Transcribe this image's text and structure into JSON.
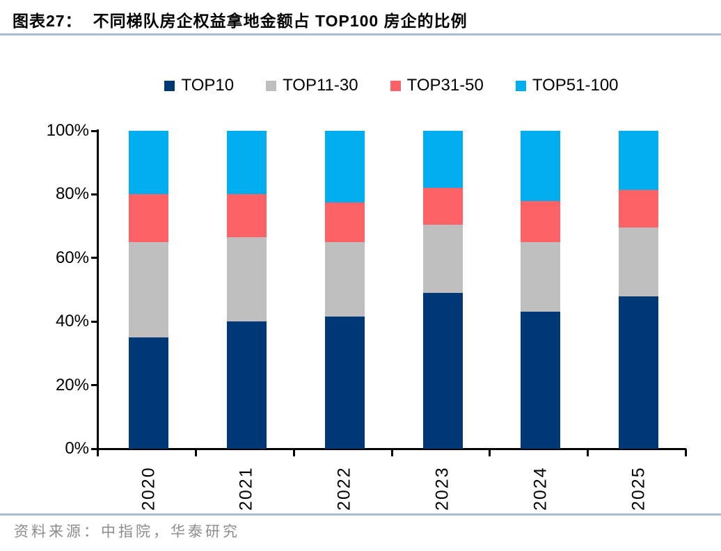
{
  "header": {
    "title_prefix": "图表27：",
    "title": "不同梯队房企权益拿地金额占 TOP100 房企的比例"
  },
  "colors": {
    "navy": "#003876",
    "gray": "#BFBFBF",
    "salmon": "#FD6366",
    "sky": "#00ADEE",
    "rule": "#A8BED6",
    "axis": "#000000",
    "source_text": "#8C8C8C"
  },
  "chart_data": {
    "type": "bar",
    "stacked": true,
    "percent_stacked": true,
    "title": "不同梯队房企权益拿地金额占 TOP100 房企的比例",
    "xlabel": "",
    "ylabel": "",
    "ylim": [
      0,
      100
    ],
    "yticks": [
      "0%",
      "20%",
      "40%",
      "60%",
      "80%",
      "100%"
    ],
    "ytick_values": [
      0,
      20,
      40,
      60,
      80,
      100
    ],
    "grid": false,
    "legend_position": "top",
    "x_labels_rotated_deg": 90,
    "categories": [
      "2020",
      "2021",
      "2022",
      "2023",
      "2024",
      "2025"
    ],
    "series": [
      {
        "name": "TOP10",
        "color": "#003876",
        "values": [
          35,
          40,
          41.5,
          49,
          43,
          48
        ]
      },
      {
        "name": "TOP11-30",
        "color": "#BFBFBF",
        "values": [
          30,
          26.5,
          23.5,
          21.5,
          22,
          21.5
        ]
      },
      {
        "name": "TOP31-50",
        "color": "#FD6366",
        "values": [
          15,
          13.5,
          12.5,
          11.5,
          13,
          12
        ]
      },
      {
        "name": "TOP51-100",
        "color": "#00ADEE",
        "values": [
          20,
          20,
          22.5,
          18,
          22,
          18.5
        ]
      }
    ]
  },
  "source": {
    "label": "资料来源：中指院，华泰研究"
  }
}
